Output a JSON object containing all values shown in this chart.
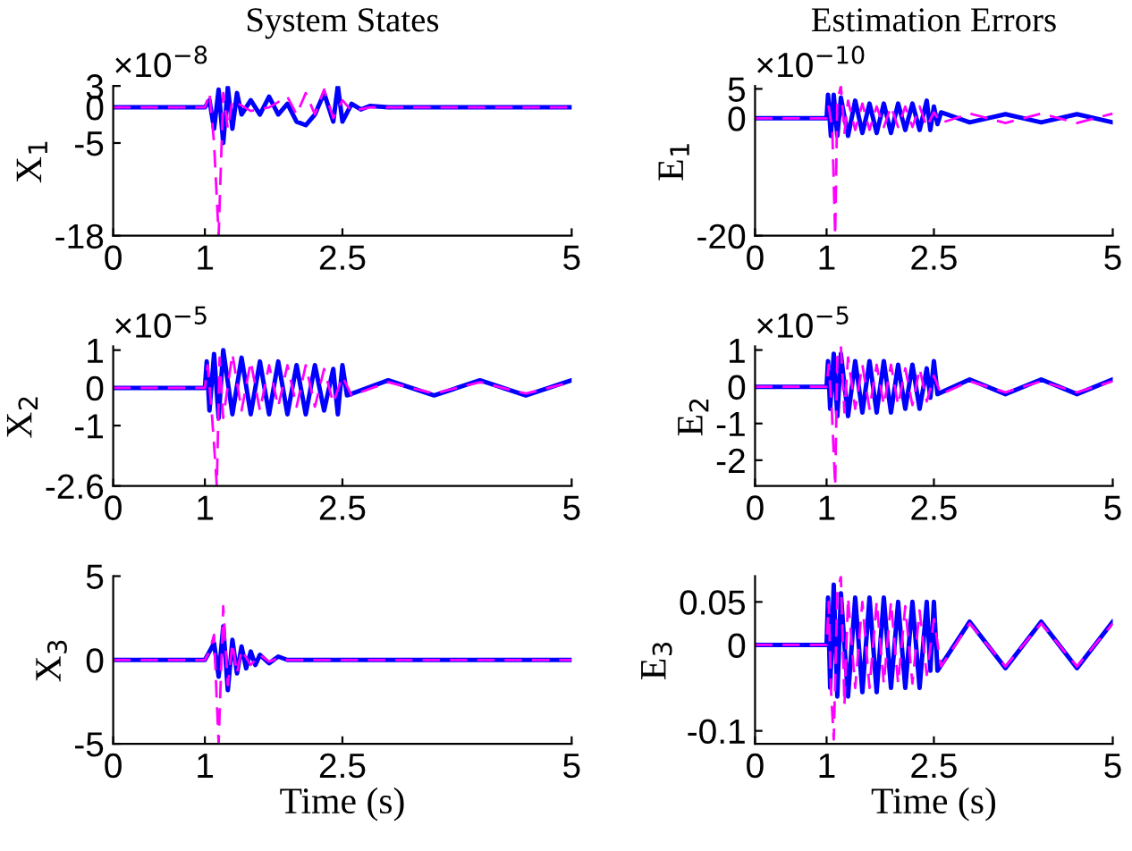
{
  "chart_data": [
    {
      "type": "line",
      "title": "System States",
      "ylabel": "X$_{1}$",
      "annotations": [
        "×10$^{−8}$"
      ],
      "xlim": [
        0,
        5
      ],
      "xticks": [
        0,
        1,
        2.5,
        5
      ],
      "ylim": [
        -18,
        3
      ],
      "yticks": [
        -18,
        -5,
        0,
        3
      ],
      "grid": false,
      "legend": false,
      "marker": "none",
      "series": [
        {
          "color": "#0000ff",
          "line_style": "solid",
          "x": [
            0,
            1,
            1.05,
            1.1,
            1.15,
            1.2,
            1.25,
            1.3,
            1.35,
            1.4,
            1.5,
            1.6,
            1.7,
            1.8,
            1.9,
            2.0,
            2.1,
            2.2,
            2.3,
            2.4,
            2.45,
            2.5,
            2.6,
            2.7,
            2.8,
            3,
            5
          ],
          "values": [
            0,
            0,
            1,
            -3,
            2.5,
            -5,
            2.8,
            -3,
            2,
            -1,
            1,
            -1,
            1.5,
            -1,
            0.5,
            -2,
            -2.5,
            -1,
            2,
            -2,
            3,
            -2,
            0.5,
            -0.3,
            0.2,
            0,
            0
          ]
        },
        {
          "color": "#ff00ff",
          "line_style": "dashed",
          "x": [
            0,
            1,
            1.05,
            1.1,
            1.15,
            1.2,
            1.25,
            1.3,
            1.5,
            1.7,
            1.9,
            2.0,
            2.1,
            2.2,
            2.3,
            2.4,
            2.5,
            2.6,
            2.8,
            5
          ],
          "values": [
            0,
            0,
            2,
            -5,
            -18,
            2,
            -3,
            1,
            -0.5,
            0,
            1.5,
            -1,
            2,
            -1,
            2.5,
            -1.5,
            1,
            -0.5,
            0,
            0
          ]
        }
      ]
    },
    {
      "type": "line",
      "title": "Estimation Errors",
      "ylabel": "E$_{1}$",
      "annotations": [
        "×10$^{−10}$"
      ],
      "xlim": [
        0,
        5
      ],
      "xticks": [
        0,
        1,
        2.5,
        5
      ],
      "ylim": [
        -20,
        5.5
      ],
      "yticks": [
        -20,
        0,
        5
      ],
      "grid": false,
      "legend": false,
      "marker": "none",
      "series": [
        {
          "color": "#0000ff",
          "line_style": "solid",
          "x": [
            0,
            1,
            1.02,
            1.06,
            1.1,
            1.15,
            1.2,
            1.3,
            1.4,
            1.5,
            1.6,
            1.7,
            1.8,
            1.9,
            2.0,
            2.1,
            2.2,
            2.3,
            2.4,
            2.45,
            2.5,
            2.55,
            2.6,
            3,
            3.5,
            4,
            4.5,
            5
          ],
          "values": [
            0,
            0,
            4,
            -3,
            4,
            -3,
            3.5,
            -3,
            3,
            -2.5,
            2.5,
            -2.5,
            2.5,
            -2.5,
            2.5,
            -2,
            2.5,
            -2,
            3,
            -2,
            2,
            -1,
            1,
            -0.7,
            0.7,
            -0.7,
            0.7,
            -0.7
          ]
        },
        {
          "color": "#ff00ff",
          "line_style": "dashed",
          "x": [
            0,
            1,
            1.03,
            1.08,
            1.12,
            1.15,
            1.2,
            1.25,
            1.3,
            1.4,
            1.5,
            1.6,
            1.7,
            1.8,
            1.9,
            2.0,
            2.1,
            2.2,
            2.3,
            2.4,
            2.5,
            2.6,
            3,
            3.5,
            4,
            4.5,
            5
          ],
          "values": [
            0,
            0,
            2,
            -2,
            -20,
            3,
            5.5,
            -2.5,
            3,
            -2,
            2.5,
            -2,
            2,
            -1.5,
            2,
            -1.5,
            2,
            -1.5,
            2,
            -1.5,
            1,
            -0.8,
            0.8,
            -0.8,
            0.8,
            -0.8,
            0.8
          ]
        }
      ]
    },
    {
      "type": "line",
      "ylabel": "X$_{2}$",
      "annotations": [
        "×10$^{−5}$"
      ],
      "xlim": [
        0,
        5
      ],
      "xticks": [
        0,
        1,
        2.5,
        5
      ],
      "ylim": [
        -2.6,
        1.1
      ],
      "yticks": [
        -2.6,
        -1,
        0,
        1
      ],
      "grid": false,
      "legend": false,
      "marker": "none",
      "series": [
        {
          "color": "#0000ff",
          "line_style": "solid",
          "x": [
            0,
            1,
            1.02,
            1.05,
            1.1,
            1.15,
            1.2,
            1.3,
            1.4,
            1.5,
            1.6,
            1.7,
            1.8,
            1.9,
            2.0,
            2.1,
            2.2,
            2.3,
            2.4,
            2.45,
            2.5,
            2.55,
            3,
            3.5,
            4,
            4.5,
            5
          ],
          "values": [
            0,
            0,
            0.7,
            -0.6,
            0.9,
            -0.8,
            1,
            -0.7,
            0.8,
            -0.7,
            0.7,
            -0.7,
            0.7,
            -0.7,
            0.6,
            -0.7,
            0.6,
            -0.6,
            0.5,
            -0.7,
            0.6,
            -0.2,
            0.2,
            -0.2,
            0.2,
            -0.2,
            0.2
          ]
        },
        {
          "color": "#ff00ff",
          "line_style": "dashed",
          "x": [
            0,
            1,
            1.03,
            1.07,
            1.1,
            1.13,
            1.16,
            1.2,
            1.3,
            1.4,
            1.5,
            1.6,
            1.7,
            1.8,
            1.9,
            2.0,
            2.1,
            2.2,
            2.3,
            2.4,
            2.5,
            2.6,
            3,
            3.5,
            4,
            4.5,
            5
          ],
          "values": [
            0,
            0,
            0.6,
            -0.5,
            -1.5,
            -2.6,
            0.8,
            -0.8,
            0.9,
            -0.6,
            0.7,
            -0.6,
            0.6,
            -0.5,
            0.6,
            -0.5,
            0.6,
            -0.5,
            0.5,
            -0.4,
            0.3,
            -0.2,
            0.15,
            -0.15,
            0.15,
            -0.15,
            0.15
          ]
        }
      ]
    },
    {
      "type": "line",
      "ylabel": "E$_{2}$",
      "annotations": [
        "×10$^{−5}$"
      ],
      "xlim": [
        0,
        5
      ],
      "xticks": [
        0,
        1,
        2.5,
        5
      ],
      "ylim": [
        -2.7,
        1.1
      ],
      "yticks": [
        -2,
        -1,
        0,
        1
      ],
      "grid": false,
      "legend": false,
      "marker": "none",
      "series": [
        {
          "color": "#0000ff",
          "line_style": "solid",
          "x": [
            0,
            1,
            1.02,
            1.05,
            1.1,
            1.15,
            1.2,
            1.3,
            1.4,
            1.5,
            1.6,
            1.7,
            1.8,
            1.9,
            2.0,
            2.1,
            2.2,
            2.3,
            2.4,
            2.45,
            2.5,
            2.55,
            3,
            3.5,
            4,
            4.5,
            5
          ],
          "values": [
            0,
            0,
            0.7,
            -0.6,
            0.9,
            -0.8,
            0.9,
            -0.8,
            0.7,
            -0.7,
            0.7,
            -0.7,
            0.7,
            -0.7,
            0.6,
            -0.6,
            0.6,
            -0.6,
            0.5,
            -0.3,
            0.7,
            -0.2,
            0.2,
            -0.2,
            0.2,
            -0.2,
            0.2
          ]
        },
        {
          "color": "#ff00ff",
          "line_style": "dashed",
          "x": [
            0,
            1,
            1.03,
            1.07,
            1.12,
            1.15,
            1.2,
            1.25,
            1.3,
            1.4,
            1.5,
            1.6,
            1.7,
            1.8,
            1.9,
            2.0,
            2.1,
            2.2,
            2.3,
            2.4,
            2.5,
            2.6,
            3,
            3.5,
            4,
            4.5,
            5
          ],
          "values": [
            0,
            0,
            0.6,
            -0.5,
            -2.7,
            0.8,
            1.1,
            -0.7,
            0.8,
            -0.6,
            0.6,
            -0.6,
            0.6,
            -0.5,
            0.6,
            -0.5,
            0.5,
            -0.5,
            0.5,
            -0.4,
            0.3,
            -0.2,
            0.15,
            -0.15,
            0.15,
            -0.15,
            0.15
          ]
        }
      ]
    },
    {
      "type": "line",
      "ylabel": "X$_{3}$",
      "xlabel": "Time (s)",
      "xlim": [
        0,
        5
      ],
      "xticks": [
        0,
        1,
        2.5,
        5
      ],
      "ylim": [
        -5,
        5
      ],
      "yticks": [
        -5,
        0,
        5
      ],
      "grid": false,
      "legend": false,
      "marker": "none",
      "series": [
        {
          "color": "#0000ff",
          "line_style": "solid",
          "x": [
            0,
            1,
            1.05,
            1.1,
            1.15,
            1.2,
            1.25,
            1.3,
            1.35,
            1.4,
            1.45,
            1.5,
            1.55,
            1.6,
            1.7,
            1.8,
            1.9,
            5
          ],
          "values": [
            0,
            0,
            0.5,
            1,
            -1,
            2,
            -1.8,
            1.2,
            -0.8,
            0.8,
            -0.5,
            0.5,
            -0.3,
            0.3,
            -0.2,
            0.2,
            0,
            0
          ]
        },
        {
          "color": "#ff00ff",
          "line_style": "dashed",
          "x": [
            0,
            1,
            1.05,
            1.1,
            1.13,
            1.15,
            1.2,
            1.25,
            1.3,
            1.35,
            1.4,
            1.5,
            1.6,
            1.7,
            1.8,
            1.9,
            5
          ],
          "values": [
            0,
            0,
            0.5,
            1.5,
            -2.5,
            -5,
            3.2,
            -1.5,
            1,
            -0.8,
            0.6,
            -0.3,
            0.3,
            -0.1,
            0.1,
            0,
            0
          ]
        }
      ]
    },
    {
      "type": "line",
      "ylabel": "E$_{3}$",
      "xlabel": "Time (s)",
      "xlim": [
        0,
        5
      ],
      "xticks": [
        0,
        1,
        2.5,
        5
      ],
      "ylim": [
        -0.115,
        0.08
      ],
      "yticks": [
        -0.1,
        0,
        0.05
      ],
      "grid": false,
      "legend": false,
      "marker": "none",
      "series": [
        {
          "color": "#0000ff",
          "line_style": "solid",
          "x": [
            0,
            1,
            1.02,
            1.05,
            1.1,
            1.15,
            1.2,
            1.3,
            1.4,
            1.5,
            1.6,
            1.7,
            1.8,
            1.9,
            2.0,
            2.1,
            2.2,
            2.3,
            2.4,
            2.45,
            2.5,
            2.55,
            3,
            3.5,
            4,
            4.5,
            5
          ],
          "values": [
            0,
            0,
            0.055,
            -0.05,
            0.07,
            -0.06,
            0.06,
            -0.06,
            0.055,
            -0.055,
            0.055,
            -0.055,
            0.055,
            -0.05,
            0.05,
            -0.05,
            0.05,
            -0.05,
            0.05,
            -0.03,
            0.05,
            -0.03,
            0.027,
            -0.027,
            0.027,
            -0.027,
            0.027
          ]
        },
        {
          "color": "#ff00ff",
          "line_style": "dashed",
          "x": [
            0,
            1,
            1.03,
            1.06,
            1.1,
            1.15,
            1.2,
            1.25,
            1.3,
            1.4,
            1.5,
            1.6,
            1.7,
            1.8,
            1.9,
            2.0,
            2.1,
            2.2,
            2.3,
            2.4,
            2.5,
            2.6,
            3,
            3.5,
            4,
            4.5,
            5
          ],
          "values": [
            0,
            0,
            0.05,
            -0.05,
            -0.11,
            0.06,
            0.08,
            -0.07,
            0.055,
            -0.05,
            0.05,
            -0.05,
            0.05,
            -0.045,
            0.05,
            -0.045,
            0.045,
            -0.045,
            0.04,
            -0.035,
            0.03,
            -0.025,
            0.025,
            -0.025,
            0.025,
            -0.025,
            0.025
          ]
        }
      ]
    }
  ]
}
